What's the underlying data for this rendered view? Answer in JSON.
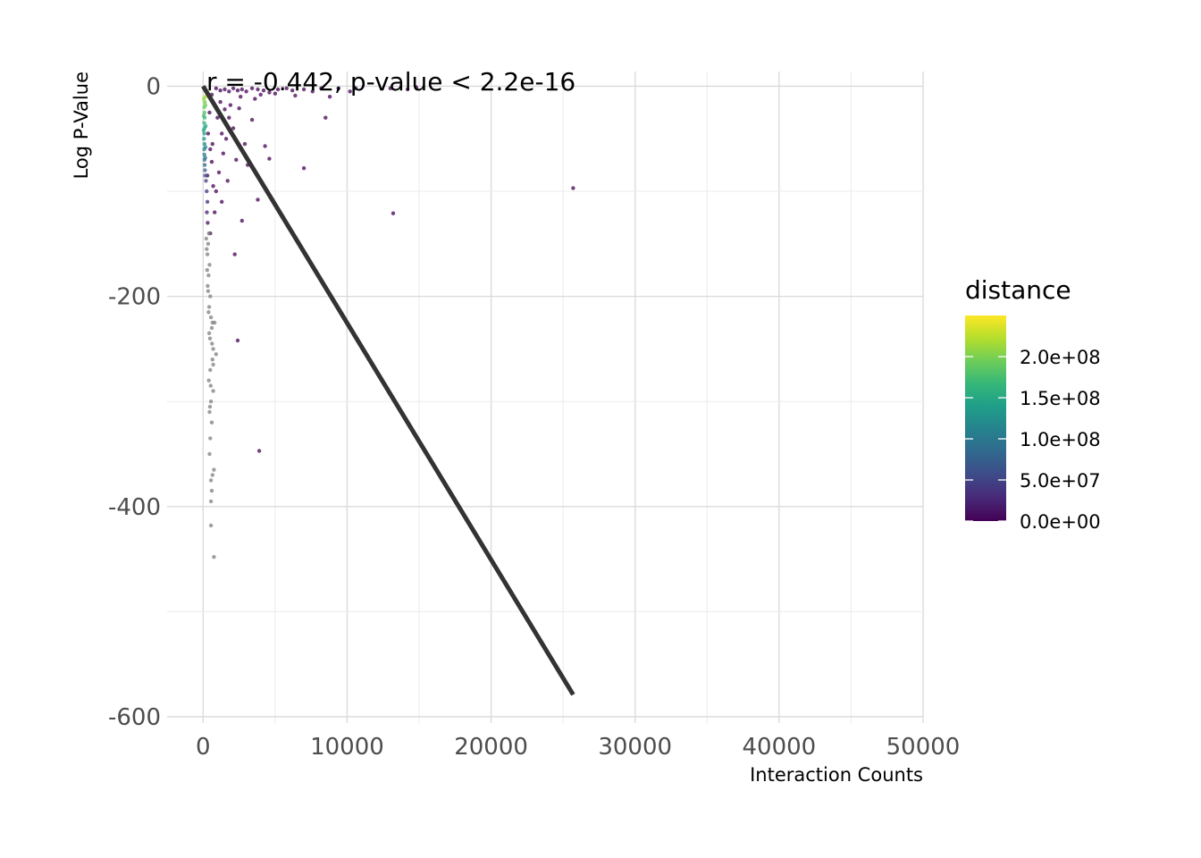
{
  "chart_data": {
    "type": "scatter",
    "title": "",
    "xlabel": "Interaction Counts",
    "ylabel": "Log P-Value",
    "xlim": [
      -2500,
      50000
    ],
    "ylim": [
      -606,
      14
    ],
    "x_ticks": [
      0,
      10000,
      20000,
      30000,
      40000,
      50000
    ],
    "x_tick_labels": [
      "0",
      "10000",
      "20000",
      "30000",
      "40000",
      "50000"
    ],
    "y_ticks": [
      0,
      -200,
      -400,
      -600
    ],
    "y_tick_labels": [
      "0",
      "-200",
      "-400",
      "-600"
    ],
    "annotation": "r = -0.442, p-value < 2.2e-16",
    "grid": true,
    "legend": {
      "title": "distance",
      "position": "right",
      "range": [
        0,
        250000000
      ],
      "breaks": [
        0,
        50000000,
        100000000,
        150000000,
        200000000
      ],
      "labels": [
        "0.0e+00",
        "5.0e+07",
        "1.0e+08",
        "1.5e+08",
        "2.0e+08"
      ],
      "colormap": "viridis",
      "colors": [
        "#440154",
        "#482878",
        "#3E4A89",
        "#31688E",
        "#26828E",
        "#1F9E89",
        "#35B779",
        "#6DCD59",
        "#B4DE2C",
        "#FDE725"
      ],
      "na_color": "#7f7f7f"
    },
    "fit_line": {
      "color": "#333333",
      "x": [
        0,
        25700
      ],
      "y": [
        0,
        -579
      ]
    },
    "points": [
      {
        "x": 900,
        "y": -2,
        "d": 0
      },
      {
        "x": 1200,
        "y": -4,
        "d": 0
      },
      {
        "x": 1500,
        "y": -3,
        "d": 0
      },
      {
        "x": 1800,
        "y": -5,
        "d": 0
      },
      {
        "x": 2100,
        "y": -2,
        "d": 0
      },
      {
        "x": 2400,
        "y": -4,
        "d": 0
      },
      {
        "x": 2700,
        "y": -3,
        "d": 0
      },
      {
        "x": 3000,
        "y": -5,
        "d": 0
      },
      {
        "x": 3400,
        "y": -2,
        "d": 0
      },
      {
        "x": 3800,
        "y": -3,
        "d": 0
      },
      {
        "x": 4200,
        "y": -4,
        "d": 0
      },
      {
        "x": 4600,
        "y": -6,
        "d": 0
      },
      {
        "x": 5200,
        "y": -3,
        "d": 0
      },
      {
        "x": 5800,
        "y": -2,
        "d": 0
      },
      {
        "x": 6200,
        "y": -4,
        "d": 0
      },
      {
        "x": 7000,
        "y": -3,
        "d": 0
      },
      {
        "x": 7600,
        "y": -5,
        "d": 0
      },
      {
        "x": 8200,
        "y": -2,
        "d": 0
      },
      {
        "x": 8800,
        "y": -10,
        "d": 0
      },
      {
        "x": 9400,
        "y": -2,
        "d": 0
      },
      {
        "x": 10200,
        "y": -5,
        "d": 0
      },
      {
        "x": 10600,
        "y": -2,
        "d": 0
      },
      {
        "x": 13000,
        "y": -2,
        "d": 0
      },
      {
        "x": 14200,
        "y": -3,
        "d": 0
      },
      {
        "x": 14800,
        "y": -1,
        "d": 0
      },
      {
        "x": 8500,
        "y": -30,
        "d": 0
      },
      {
        "x": 4300,
        "y": -57,
        "d": 0
      },
      {
        "x": 4600,
        "y": -69,
        "d": 0
      },
      {
        "x": 7000,
        "y": -78,
        "d": 0
      },
      {
        "x": 25700,
        "y": -97,
        "d": 0
      },
      {
        "x": 13200,
        "y": -121,
        "d": 0
      },
      {
        "x": 3800,
        "y": -108,
        "d": 0
      },
      {
        "x": 2700,
        "y": -128,
        "d": 0
      },
      {
        "x": 2200,
        "y": -160,
        "d": 0
      },
      {
        "x": 2400,
        "y": -242,
        "d": 0
      },
      {
        "x": 3900,
        "y": -347,
        "d": 0
      },
      {
        "x": 3400,
        "y": -32,
        "d": 0
      },
      {
        "x": 2500,
        "y": -21,
        "d": 0
      },
      {
        "x": 1900,
        "y": -18,
        "d": 0
      },
      {
        "x": 2100,
        "y": -40,
        "d": 0
      },
      {
        "x": 1600,
        "y": -50,
        "d": 0
      },
      {
        "x": 1400,
        "y": -64,
        "d": 0
      },
      {
        "x": 1100,
        "y": -82,
        "d": 0
      },
      {
        "x": 900,
        "y": -100,
        "d": 0
      },
      {
        "x": 1300,
        "y": -110,
        "d": 0
      },
      {
        "x": 700,
        "y": -95,
        "d": 0
      },
      {
        "x": 1000,
        "y": -30,
        "d": 0
      },
      {
        "x": 1300,
        "y": -45,
        "d": 0
      },
      {
        "x": 600,
        "y": -72,
        "d": 0
      },
      {
        "x": 1700,
        "y": -90,
        "d": 0
      },
      {
        "x": 2900,
        "y": -55,
        "d": 0
      },
      {
        "x": 2300,
        "y": -70,
        "d": 0
      },
      {
        "x": 3100,
        "y": -75,
        "d": 0
      },
      {
        "x": 800,
        "y": -120,
        "d": 0
      },
      {
        "x": 500,
        "y": -140,
        "d": 0
      },
      {
        "x": 1500,
        "y": -22,
        "d": 0
      },
      {
        "x": 2600,
        "y": -10,
        "d": 0
      },
      {
        "x": 3600,
        "y": -12,
        "d": 0
      },
      {
        "x": 4000,
        "y": -8,
        "d": 0
      },
      {
        "x": 5000,
        "y": -7,
        "d": 0
      },
      {
        "x": 6400,
        "y": -9,
        "d": 0
      },
      {
        "x": 1800,
        "y": -30,
        "d": 0
      },
      {
        "x": 1200,
        "y": -15,
        "d": 0
      },
      {
        "x": 600,
        "y": -8,
        "d": 0
      },
      {
        "x": 450,
        "y": -25,
        "d": 0
      },
      {
        "x": 350,
        "y": -45,
        "d": 0
      },
      {
        "x": 500,
        "y": -60,
        "d": 0
      },
      {
        "x": 300,
        "y": -85,
        "d": 0
      },
      {
        "x": 650,
        "y": -55,
        "d": 0
      },
      {
        "x": 200,
        "y": -5,
        "d": 230000000
      },
      {
        "x": 100,
        "y": -3,
        "d": 250000000
      },
      {
        "x": 150,
        "y": -10,
        "d": 220000000
      },
      {
        "x": 120,
        "y": -15,
        "d": 200000000
      },
      {
        "x": 90,
        "y": -20,
        "d": 190000000
      },
      {
        "x": 100,
        "y": -25,
        "d": 180000000
      },
      {
        "x": 110,
        "y": -30,
        "d": 170000000
      },
      {
        "x": 80,
        "y": -35,
        "d": 160000000
      },
      {
        "x": 100,
        "y": -40,
        "d": 150000000
      },
      {
        "x": 90,
        "y": -45,
        "d": 140000000
      },
      {
        "x": 70,
        "y": -50,
        "d": 130000000
      },
      {
        "x": 100,
        "y": -55,
        "d": 120000000
      },
      {
        "x": 80,
        "y": -60,
        "d": 110000000
      },
      {
        "x": 90,
        "y": -65,
        "d": 100000000
      },
      {
        "x": 100,
        "y": -70,
        "d": 90000000
      },
      {
        "x": 110,
        "y": -75,
        "d": 80000000
      },
      {
        "x": 130,
        "y": -80,
        "d": 70000000
      },
      {
        "x": 140,
        "y": -85,
        "d": 60000000
      },
      {
        "x": 200,
        "y": -90,
        "d": 50000000
      },
      {
        "x": 250,
        "y": -100,
        "d": 40000000
      },
      {
        "x": 300,
        "y": -110,
        "d": 30000000
      },
      {
        "x": 260,
        "y": -120,
        "d": 20000000
      },
      {
        "x": 320,
        "y": -130,
        "d": 10000000
      },
      {
        "x": 60,
        "y": -12,
        "d": 210000000
      },
      {
        "x": 50,
        "y": -28,
        "d": 175000000
      },
      {
        "x": 40,
        "y": -42,
        "d": 155000000
      },
      {
        "x": 160,
        "y": -18,
        "d": 195000000
      },
      {
        "x": 180,
        "y": -38,
        "d": 145000000
      },
      {
        "x": 170,
        "y": -58,
        "d": 115000000
      },
      {
        "x": 150,
        "y": -68,
        "d": 95000000
      },
      {
        "x": 400,
        "y": -140,
        "d": null
      },
      {
        "x": 350,
        "y": -150,
        "d": null
      },
      {
        "x": 300,
        "y": -160,
        "d": null
      },
      {
        "x": 450,
        "y": -170,
        "d": null
      },
      {
        "x": 380,
        "y": -180,
        "d": null
      },
      {
        "x": 320,
        "y": -190,
        "d": null
      },
      {
        "x": 500,
        "y": -200,
        "d": null
      },
      {
        "x": 420,
        "y": -210,
        "d": null
      },
      {
        "x": 550,
        "y": -220,
        "d": null
      },
      {
        "x": 600,
        "y": -230,
        "d": null
      },
      {
        "x": 480,
        "y": -240,
        "d": null
      },
      {
        "x": 700,
        "y": -250,
        "d": null
      },
      {
        "x": 650,
        "y": -260,
        "d": null
      },
      {
        "x": 500,
        "y": -270,
        "d": null
      },
      {
        "x": 400,
        "y": -280,
        "d": null
      },
      {
        "x": 700,
        "y": -290,
        "d": null
      },
      {
        "x": 550,
        "y": -300,
        "d": null
      },
      {
        "x": 450,
        "y": -310,
        "d": null
      },
      {
        "x": 600,
        "y": -320,
        "d": null
      },
      {
        "x": 500,
        "y": -335,
        "d": null
      },
      {
        "x": 450,
        "y": -350,
        "d": null
      },
      {
        "x": 750,
        "y": -365,
        "d": null
      },
      {
        "x": 650,
        "y": -370,
        "d": null
      },
      {
        "x": 550,
        "y": -375,
        "d": null
      },
      {
        "x": 600,
        "y": -385,
        "d": null
      },
      {
        "x": 550,
        "y": -395,
        "d": null
      },
      {
        "x": 550,
        "y": -418,
        "d": null
      },
      {
        "x": 750,
        "y": -448,
        "d": null
      },
      {
        "x": 650,
        "y": -225,
        "d": null
      },
      {
        "x": 800,
        "y": -225,
        "d": null
      },
      {
        "x": 900,
        "y": -255,
        "d": null
      },
      {
        "x": 700,
        "y": -265,
        "d": null
      },
      {
        "x": 620,
        "y": -245,
        "d": null
      },
      {
        "x": 350,
        "y": -195,
        "d": null
      },
      {
        "x": 280,
        "y": -175,
        "d": null
      },
      {
        "x": 250,
        "y": -155,
        "d": null
      },
      {
        "x": 220,
        "y": -145,
        "d": null
      },
      {
        "x": 380,
        "y": -215,
        "d": null
      },
      {
        "x": 420,
        "y": -235,
        "d": null
      },
      {
        "x": 530,
        "y": -285,
        "d": null
      },
      {
        "x": 480,
        "y": -305,
        "d": null
      }
    ]
  }
}
